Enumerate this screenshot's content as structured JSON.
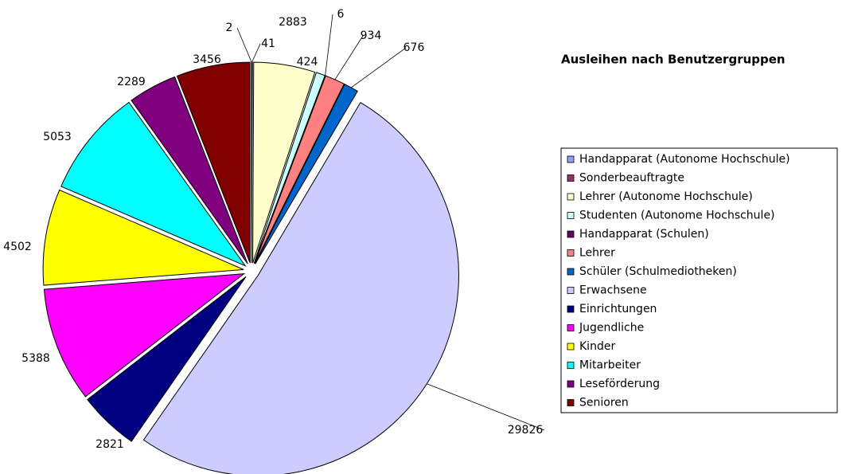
{
  "chart_data": {
    "type": "pie",
    "title": "Ausleihen nach Benutzergruppen",
    "categories": [
      "Handapparat (Autonome Hochschule)",
      "Sonderbeauftragte",
      "Lehrer (Autonome Hochschule)",
      "Studenten (Autonome Hochschule)",
      "Handapparat (Schulen)",
      "Lehrer",
      "Schüler (Schulmediotheken)",
      "Erwachsene",
      "Einrichtungen",
      "Jugendliche",
      "Kinder",
      "Mitarbeiter",
      "Leseförderung",
      "Senioren"
    ],
    "values": [
      2,
      41,
      2883,
      424,
      6,
      934,
      676,
      29826,
      2821,
      5388,
      4502,
      5053,
      2289,
      3456
    ],
    "colors": [
      "#9999ff",
      "#993366",
      "#ffffcc",
      "#ccffff",
      "#660066",
      "#ff8080",
      "#0066cc",
      "#ccccff",
      "#000080",
      "#ff00ff",
      "#ffff00",
      "#00ffff",
      "#800080",
      "#800000"
    ],
    "legend": "right"
  }
}
